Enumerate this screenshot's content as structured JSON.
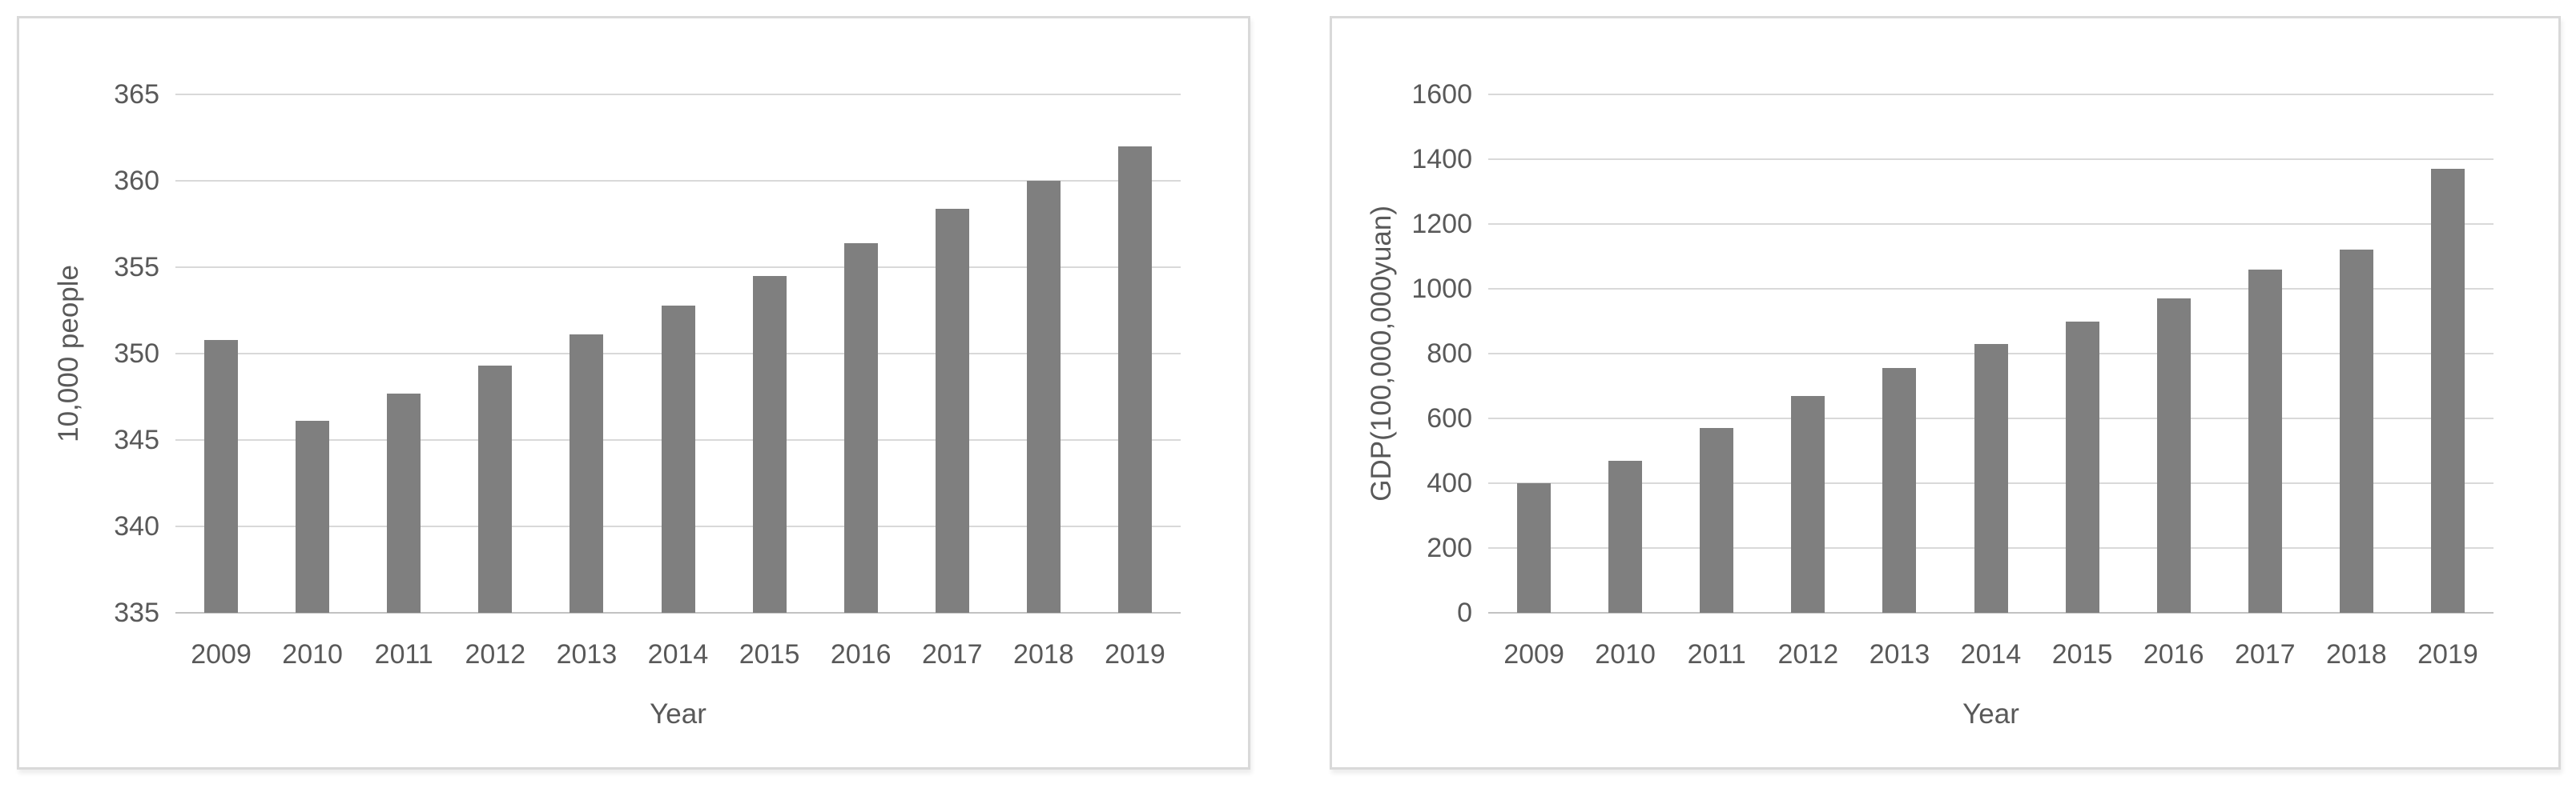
{
  "colors": {
    "bar": "#7f7f7f",
    "gridline": "#d9d9d9",
    "baseline": "#c2c2c2",
    "axis_text": "#595959",
    "panel_border": "#d9d9d9",
    "panel_background": "#ffffff"
  },
  "chart_data": [
    {
      "type": "bar",
      "title": "",
      "ylabel": "10,000 people",
      "xlabel": "Year",
      "ylim": [
        335,
        365
      ],
      "yticks": [
        365,
        360,
        355,
        350,
        345,
        340,
        335
      ],
      "grid": true,
      "legend": false,
      "categories": [
        "2009",
        "2010",
        "2011",
        "2012",
        "2013",
        "2014",
        "2015",
        "2016",
        "2017",
        "2018",
        "2019"
      ],
      "values": [
        350.8,
        346.1,
        347.7,
        349.3,
        351.1,
        352.8,
        354.5,
        356.4,
        358.4,
        360.0,
        362.0
      ]
    },
    {
      "type": "bar",
      "title": "",
      "ylabel": "GDP(100,000,000yuan)",
      "xlabel": "Year",
      "ylim": [
        0,
        1600
      ],
      "yticks": [
        1600,
        1400,
        1200,
        1000,
        800,
        600,
        400,
        200,
        0
      ],
      "grid": true,
      "legend": false,
      "categories": [
        "2009",
        "2010",
        "2011",
        "2012",
        "2013",
        "2014",
        "2015",
        "2016",
        "2017",
        "2018",
        "2019"
      ],
      "values": [
        400,
        470,
        570,
        670,
        755,
        830,
        900,
        970,
        1060,
        1120,
        1370
      ]
    }
  ]
}
